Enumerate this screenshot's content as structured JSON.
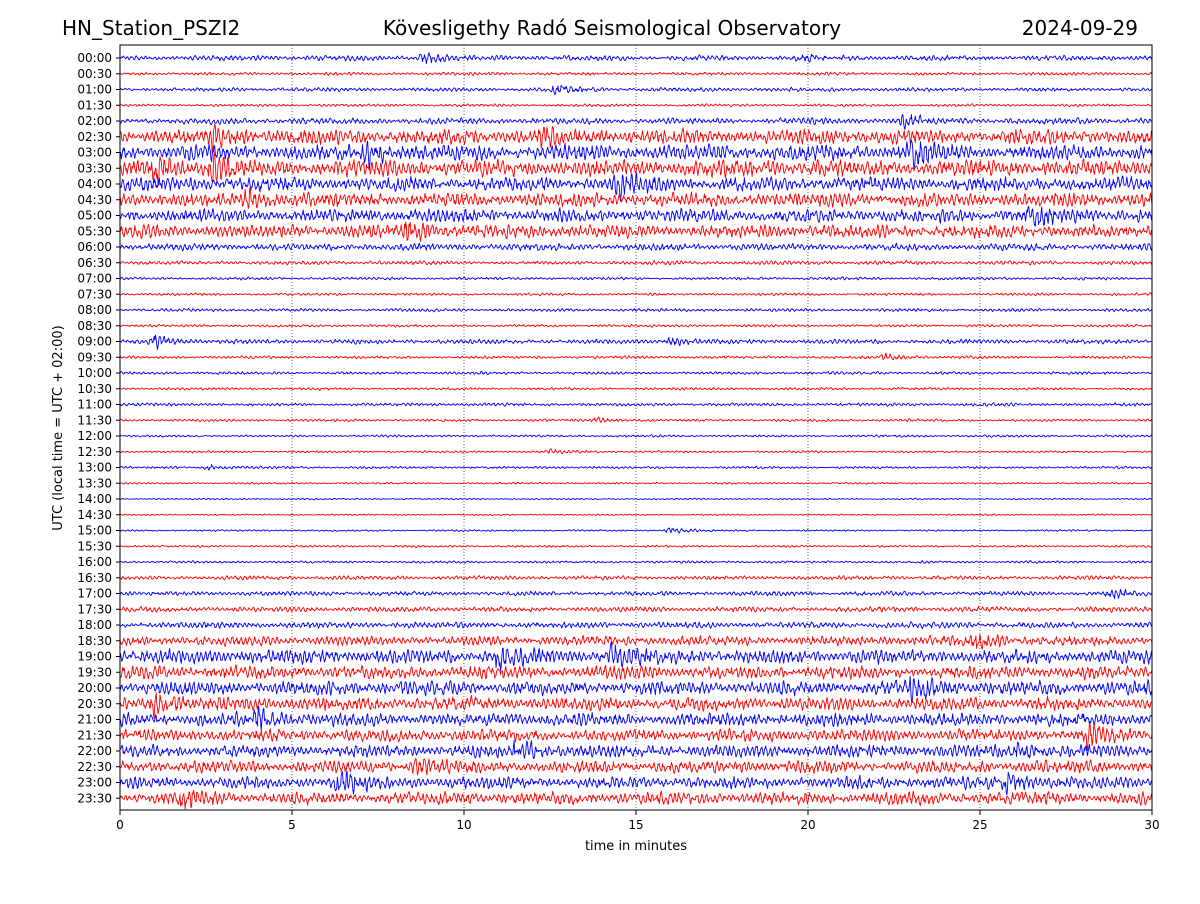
{
  "header": {
    "station": "HN_Station_PSZI2",
    "observatory": "Kövesligethy Radó Seismological Observatory",
    "date": "2024-09-29"
  },
  "chart_data": {
    "type": "line",
    "subtype": "helicorder",
    "title": "Kövesligethy Radó Seismological Observatory",
    "xlabel": "time in minutes",
    "ylabel": "UTC (local time = UTC + 02:00)",
    "xlim": [
      0,
      30
    ],
    "xticks": [
      0,
      5,
      10,
      15,
      20,
      25,
      30
    ],
    "grid": "vertical dotted lines at 5-minute intervals",
    "trace_colors": [
      "#0000ff",
      "#ff0000"
    ],
    "rows": [
      {
        "label": "00:00",
        "amp": 0.3,
        "events": [
          {
            "t": 8.8,
            "a": 0.5
          },
          {
            "t": 19.8,
            "a": 0.35
          }
        ]
      },
      {
        "label": "00:30",
        "amp": 0.18,
        "events": []
      },
      {
        "label": "01:00",
        "amp": 0.22,
        "events": [
          {
            "t": 12.7,
            "a": 0.45
          }
        ]
      },
      {
        "label": "01:30",
        "amp": 0.15,
        "events": []
      },
      {
        "label": "02:00",
        "amp": 0.35,
        "events": [
          {
            "t": 22.8,
            "a": 0.6
          }
        ]
      },
      {
        "label": "02:30",
        "amp": 0.85,
        "events": [
          {
            "t": 2.7,
            "a": 1.0
          },
          {
            "t": 12.3,
            "a": 0.9
          }
        ]
      },
      {
        "label": "03:00",
        "amp": 0.9,
        "events": [
          {
            "t": 7.2,
            "a": 1.1
          },
          {
            "t": 23.0,
            "a": 1.1
          }
        ]
      },
      {
        "label": "03:30",
        "amp": 0.95,
        "events": [
          {
            "t": 1.0,
            "a": 1.2
          },
          {
            "t": 2.6,
            "a": 1.2
          }
        ]
      },
      {
        "label": "04:00",
        "amp": 0.8,
        "events": [
          {
            "t": 14.5,
            "a": 1.0
          }
        ]
      },
      {
        "label": "04:30",
        "amp": 0.8,
        "events": [
          {
            "t": 3.7,
            "a": 1.0
          }
        ]
      },
      {
        "label": "05:00",
        "amp": 0.75,
        "events": [
          {
            "t": 26.5,
            "a": 1.0
          }
        ]
      },
      {
        "label": "05:30",
        "amp": 0.75,
        "events": [
          {
            "t": 8.3,
            "a": 1.1
          }
        ]
      },
      {
        "label": "06:00",
        "amp": 0.4,
        "events": []
      },
      {
        "label": "06:30",
        "amp": 0.22,
        "events": []
      },
      {
        "label": "07:00",
        "amp": 0.16,
        "events": []
      },
      {
        "label": "07:30",
        "amp": 0.15,
        "events": []
      },
      {
        "label": "08:00",
        "amp": 0.18,
        "events": []
      },
      {
        "label": "08:30",
        "amp": 0.15,
        "events": []
      },
      {
        "label": "09:00",
        "amp": 0.25,
        "events": [
          {
            "t": 1.0,
            "a": 0.8
          },
          {
            "t": 16.0,
            "a": 0.4
          }
        ]
      },
      {
        "label": "09:30",
        "amp": 0.16,
        "events": [
          {
            "t": 22.2,
            "a": 0.35
          }
        ]
      },
      {
        "label": "10:00",
        "amp": 0.16,
        "events": []
      },
      {
        "label": "10:30",
        "amp": 0.14,
        "events": []
      },
      {
        "label": "11:00",
        "amp": 0.18,
        "events": []
      },
      {
        "label": "11:30",
        "amp": 0.15,
        "events": [
          {
            "t": 13.8,
            "a": 0.25
          }
        ]
      },
      {
        "label": "12:00",
        "amp": 0.13,
        "events": []
      },
      {
        "label": "12:30",
        "amp": 0.12,
        "events": [
          {
            "t": 12.5,
            "a": 0.25
          }
        ]
      },
      {
        "label": "13:00",
        "amp": 0.14,
        "events": [
          {
            "t": 2.6,
            "a": 0.3
          }
        ]
      },
      {
        "label": "13:30",
        "amp": 0.1,
        "events": []
      },
      {
        "label": "14:00",
        "amp": 0.08,
        "events": []
      },
      {
        "label": "14:30",
        "amp": 0.08,
        "events": []
      },
      {
        "label": "15:00",
        "amp": 0.1,
        "events": [
          {
            "t": 16.0,
            "a": 0.3
          }
        ]
      },
      {
        "label": "15:30",
        "amp": 0.12,
        "events": []
      },
      {
        "label": "16:00",
        "amp": 0.14,
        "events": []
      },
      {
        "label": "16:30",
        "amp": 0.22,
        "events": []
      },
      {
        "label": "17:00",
        "amp": 0.25,
        "events": [
          {
            "t": 28.8,
            "a": 0.5
          }
        ]
      },
      {
        "label": "17:30",
        "amp": 0.3,
        "events": []
      },
      {
        "label": "18:00",
        "amp": 0.35,
        "events": []
      },
      {
        "label": "18:30",
        "amp": 0.55,
        "events": [
          {
            "t": 24.9,
            "a": 0.9
          }
        ]
      },
      {
        "label": "19:00",
        "amp": 0.8,
        "events": [
          {
            "t": 11.0,
            "a": 1.1
          },
          {
            "t": 14.3,
            "a": 1.1
          }
        ]
      },
      {
        "label": "19:30",
        "amp": 0.75,
        "events": []
      },
      {
        "label": "20:00",
        "amp": 0.8,
        "events": [
          {
            "t": 23.0,
            "a": 1.0
          }
        ]
      },
      {
        "label": "20:30",
        "amp": 0.75,
        "events": [
          {
            "t": 1.0,
            "a": 1.2
          }
        ]
      },
      {
        "label": "21:00",
        "amp": 0.75,
        "events": [
          {
            "t": 4.0,
            "a": 1.0
          }
        ]
      },
      {
        "label": "21:30",
        "amp": 0.7,
        "events": [
          {
            "t": 28.0,
            "a": 1.0
          }
        ]
      },
      {
        "label": "22:00",
        "amp": 0.7,
        "events": [
          {
            "t": 11.5,
            "a": 1.0
          },
          {
            "t": 26.0,
            "a": 0.9
          }
        ]
      },
      {
        "label": "22:30",
        "amp": 0.7,
        "events": [
          {
            "t": 8.6,
            "a": 1.0
          }
        ]
      },
      {
        "label": "23:00",
        "amp": 0.7,
        "events": [
          {
            "t": 6.4,
            "a": 1.0
          },
          {
            "t": 25.8,
            "a": 0.9
          }
        ]
      },
      {
        "label": "23:30",
        "amp": 0.7,
        "events": [
          {
            "t": 1.8,
            "a": 1.0
          }
        ]
      }
    ]
  }
}
